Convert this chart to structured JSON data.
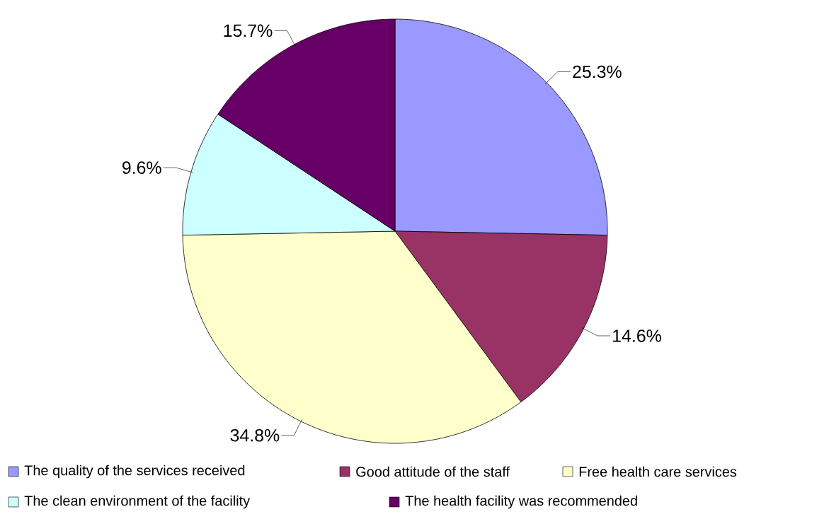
{
  "chart_data": {
    "type": "pie",
    "categories": [
      "The quality of the services received",
      "Good attitude of the staff",
      "Free health care services",
      "The clean environment of the facility",
      "The health facility was recommended"
    ],
    "values": [
      25.3,
      14.6,
      34.8,
      9.6,
      15.7
    ],
    "value_labels": [
      "25.3%",
      "14.6%",
      "34.8%",
      "9.6%",
      "15.7%"
    ],
    "colors": [
      "#9999ff",
      "#993366",
      "#ffffcc",
      "#ccffff",
      "#660066"
    ],
    "legend": "bottom"
  }
}
